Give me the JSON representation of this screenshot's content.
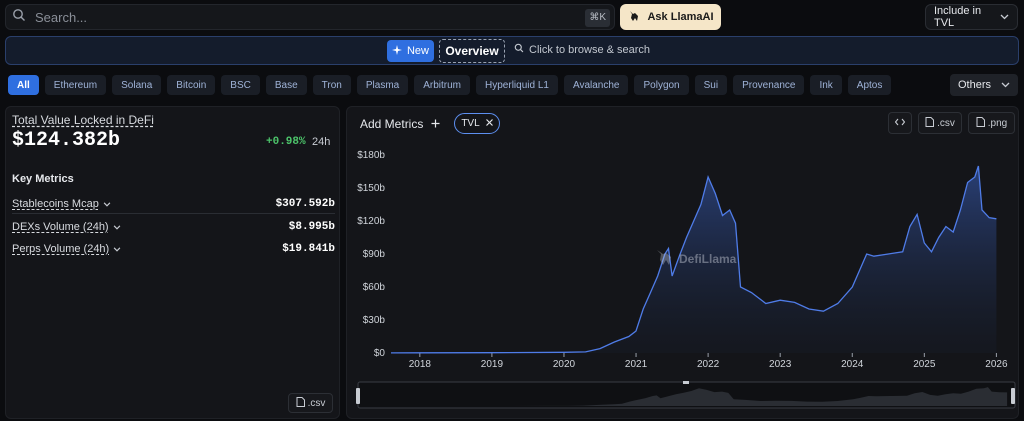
{
  "search": {
    "placeholder": "Search...",
    "shortcut": "⌘K"
  },
  "ask_button": "Ask LlamaAI",
  "include_select": "Include in TVL",
  "overview": {
    "new_label": "New",
    "overview_label": "Overview",
    "browse_text": "Click to browse & search"
  },
  "chains": [
    "All",
    "Ethereum",
    "Solana",
    "Bitcoin",
    "BSC",
    "Base",
    "Tron",
    "Plasma",
    "Arbitrum",
    "Hyperliquid L1",
    "Avalanche",
    "Polygon",
    "Sui",
    "Provenance",
    "Ink",
    "Aptos"
  ],
  "others_label": "Others",
  "summary": {
    "tvl_label": "Total Value Locked in DeFi",
    "tvl_value": "$124.382b",
    "change": "+0.98%",
    "change_period": "24h",
    "key_metrics_title": "Key Metrics",
    "metrics": [
      {
        "label": "Stablecoins Mcap",
        "value": "$307.592b"
      },
      {
        "label": "DEXs Volume (24h)",
        "value": "$8.995b"
      },
      {
        "label": "Perps Volume (24h)",
        "value": "$19.841b"
      }
    ],
    "csv_label": ".csv"
  },
  "chart_panel": {
    "add_metrics_label": "Add Metrics",
    "tvl_tag": "TVL",
    "csv_label": ".csv",
    "png_label": ".png",
    "watermark": "DefiLlama"
  },
  "colors": {
    "accent": "#2f6fe0",
    "line": "#4f7ce8",
    "positive": "#4cc36a",
    "ask_bg": "#f5e6c8"
  },
  "chart_data": {
    "type": "area",
    "series": [
      {
        "x": [
          2017.6,
          2018.0,
          2019.0,
          2020.0,
          2020.3,
          2020.5,
          2020.7,
          2020.9,
          2021.0,
          2021.1,
          2021.2,
          2021.3,
          2021.35,
          2021.4,
          2021.45,
          2021.5,
          2021.6,
          2021.7,
          2021.8,
          2021.9,
          2022.0,
          2022.1,
          2022.2,
          2022.3,
          2022.38,
          2022.45,
          2022.6,
          2022.8,
          2023.0,
          2023.2,
          2023.4,
          2023.6,
          2023.8,
          2024.0,
          2024.1,
          2024.2,
          2024.3,
          2024.5,
          2024.7,
          2024.8,
          2024.9,
          2025.0,
          2025.1,
          2025.2,
          2025.3,
          2025.4,
          2025.5,
          2025.6,
          2025.7,
          2025.75,
          2025.8,
          2025.9,
          2026.0
        ],
        "y": [
          0.1,
          0.2,
          0.3,
          0.6,
          1,
          4,
          10,
          15,
          20,
          40,
          55,
          70,
          80,
          90,
          95,
          70,
          88,
          105,
          120,
          135,
          160,
          145,
          125,
          130,
          118,
          60,
          55,
          45,
          48,
          46,
          40,
          38,
          45,
          60,
          75,
          90,
          88,
          90,
          92,
          115,
          126,
          100,
          92,
          105,
          115,
          110,
          130,
          155,
          160,
          170,
          130,
          123,
          122
        ]
      }
    ],
    "xticks": [
      "2018",
      "2019",
      "2020",
      "2021",
      "2022",
      "2023",
      "2024",
      "2025",
      "2026"
    ],
    "yticks": [
      "$0",
      "$30b",
      "$60b",
      "$90b",
      "$120b",
      "$150b",
      "$180b"
    ],
    "ylim": [
      0,
      180
    ],
    "xlim": [
      2017.6,
      2026.05
    ]
  }
}
